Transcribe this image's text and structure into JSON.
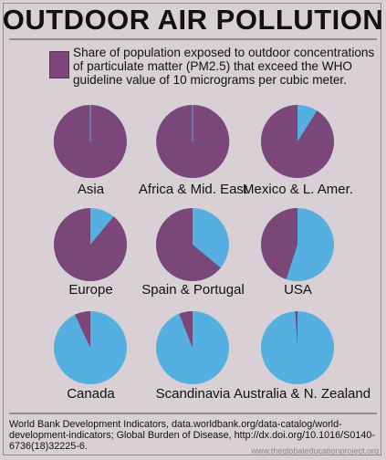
{
  "title": "OUTDOOR AIR POLLUTION",
  "legend": {
    "color": "#7b4778",
    "text": "Share of population exposed to outdoor concentrations of particulate matter (PM2.5) that exceed the WHO guideline value of 10 micrograms per cubic meter."
  },
  "colors": {
    "exposed": "#7b4778",
    "not_exposed": "#55afe0"
  },
  "chart_data": {
    "type": "pie",
    "title": "OUTDOOR AIR POLLUTION",
    "unit": "share of population",
    "series": [
      {
        "name": "Asia",
        "exposed_pct": 99.7
      },
      {
        "name": "Africa & Mid. East",
        "exposed_pct": 99.8
      },
      {
        "name": "Mexico & L. Amer.",
        "exposed_pct": 91
      },
      {
        "name": "Europe",
        "exposed_pct": 89
      },
      {
        "name": "Spain & Portugal",
        "exposed_pct": 64
      },
      {
        "name": "USA",
        "exposed_pct": 45
      },
      {
        "name": "Canada",
        "exposed_pct": 7
      },
      {
        "name": "Scandinavia",
        "exposed_pct": 6
      },
      {
        "name": "Australia & N. Zealand",
        "exposed_pct": 1
      }
    ]
  },
  "source": "World Bank Development Indicators, data.worldbank.org/data-catalog/world-development-indicators; Global Burden of Disease, http://dx.doi.org/10.1016/S0140-6736(18)32225-6.",
  "footer": "www.theglobaleducationproject.org"
}
